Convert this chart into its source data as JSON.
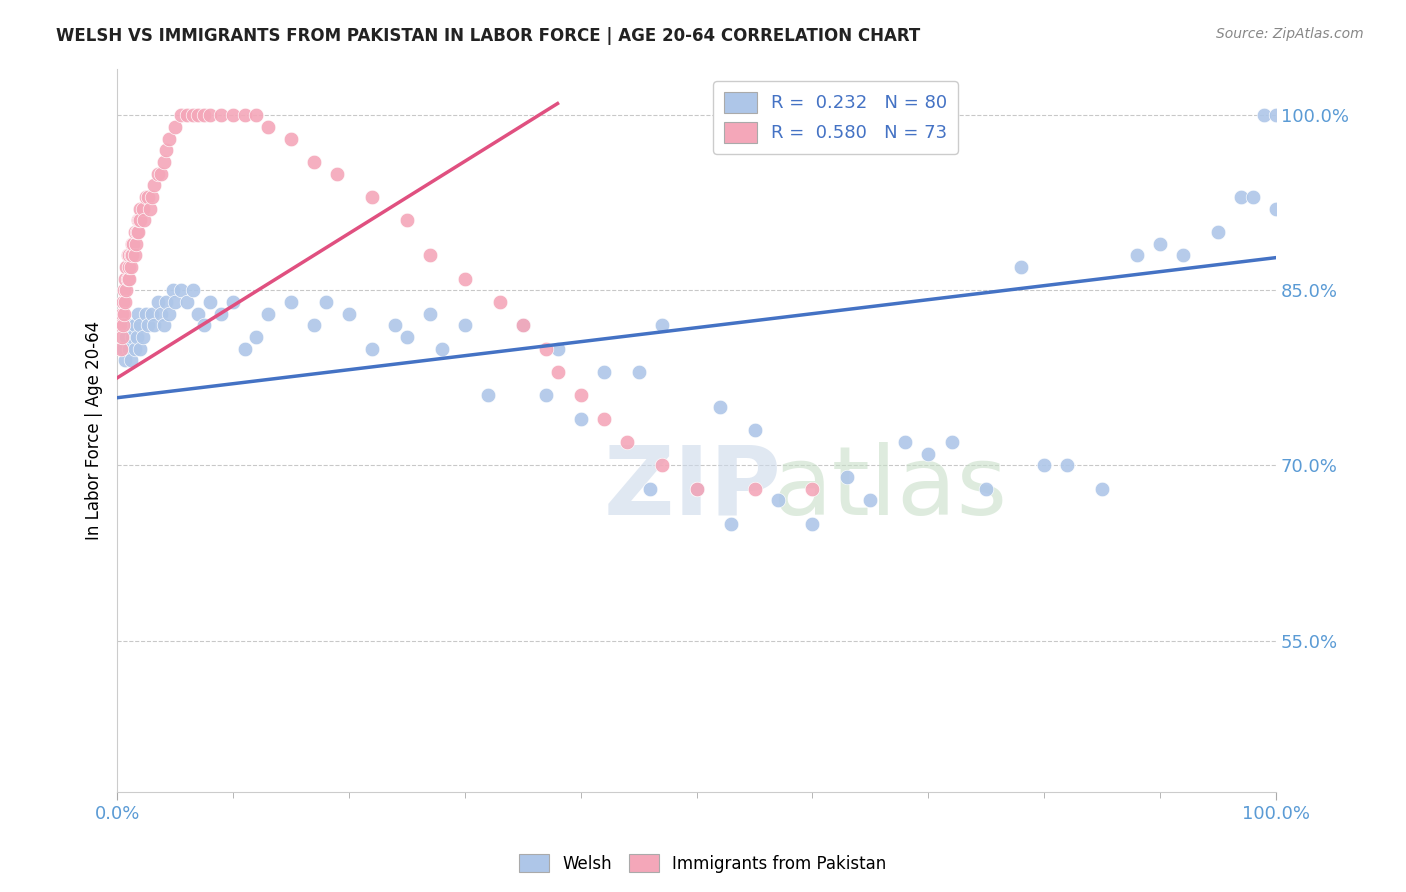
{
  "title": "WELSH VS IMMIGRANTS FROM PAKISTAN IN LABOR FORCE | AGE 20-64 CORRELATION CHART",
  "source": "Source: ZipAtlas.com",
  "ylabel": "In Labor Force | Age 20-64",
  "ytick_vals": [
    0.55,
    0.7,
    0.85,
    1.0
  ],
  "ytick_labels": [
    "55.0%",
    "70.0%",
    "85.0%",
    "100.0%"
  ],
  "xlim": [
    0.0,
    1.0
  ],
  "ylim": [
    0.42,
    1.04
  ],
  "welsh_color": "#aec6e8",
  "pakistan_color": "#f4a7b9",
  "welsh_line_color": "#4472c4",
  "pakistan_line_color": "#e05080",
  "legend_welsh": "R =  0.232   N = 80",
  "legend_pakistan": "R =  0.580   N = 73",
  "welsh_trend_x": [
    0.0,
    1.0
  ],
  "welsh_trend_y": [
    0.758,
    0.878
  ],
  "pakistan_trend_x": [
    0.0,
    0.38
  ],
  "pakistan_trend_y": [
    0.775,
    1.01
  ],
  "welsh_x": [
    0.005,
    0.007,
    0.008,
    0.01,
    0.01,
    0.012,
    0.013,
    0.015,
    0.015,
    0.017,
    0.018,
    0.02,
    0.02,
    0.022,
    0.025,
    0.027,
    0.03,
    0.032,
    0.035,
    0.038,
    0.04,
    0.042,
    0.045,
    0.048,
    0.05,
    0.055,
    0.06,
    0.065,
    0.07,
    0.075,
    0.08,
    0.09,
    0.1,
    0.11,
    0.12,
    0.13,
    0.15,
    0.17,
    0.18,
    0.2,
    0.22,
    0.24,
    0.25,
    0.27,
    0.28,
    0.3,
    0.32,
    0.35,
    0.37,
    0.38,
    0.4,
    0.42,
    0.45,
    0.46,
    0.47,
    0.5,
    0.52,
    0.53,
    0.55,
    0.57,
    0.6,
    0.63,
    0.65,
    0.68,
    0.7,
    0.72,
    0.75,
    0.78,
    0.8,
    0.82,
    0.85,
    0.88,
    0.9,
    0.92,
    0.95,
    0.97,
    0.98,
    0.99,
    1.0,
    1.0
  ],
  "welsh_y": [
    0.8,
    0.79,
    0.81,
    0.8,
    0.82,
    0.79,
    0.81,
    0.82,
    0.8,
    0.81,
    0.83,
    0.82,
    0.8,
    0.81,
    0.83,
    0.82,
    0.83,
    0.82,
    0.84,
    0.83,
    0.82,
    0.84,
    0.83,
    0.85,
    0.84,
    0.85,
    0.84,
    0.85,
    0.83,
    0.82,
    0.84,
    0.83,
    0.84,
    0.8,
    0.81,
    0.83,
    0.84,
    0.82,
    0.84,
    0.83,
    0.8,
    0.82,
    0.81,
    0.83,
    0.8,
    0.82,
    0.76,
    0.82,
    0.76,
    0.8,
    0.74,
    0.78,
    0.78,
    0.68,
    0.82,
    0.68,
    0.75,
    0.65,
    0.73,
    0.67,
    0.65,
    0.69,
    0.67,
    0.72,
    0.71,
    0.72,
    0.68,
    0.87,
    0.7,
    0.7,
    0.68,
    0.88,
    0.89,
    0.88,
    0.9,
    0.93,
    0.93,
    1.0,
    1.0,
    0.92
  ],
  "pakistan_x": [
    0.002,
    0.003,
    0.004,
    0.004,
    0.005,
    0.005,
    0.006,
    0.006,
    0.007,
    0.007,
    0.008,
    0.008,
    0.009,
    0.009,
    0.01,
    0.01,
    0.01,
    0.012,
    0.012,
    0.013,
    0.013,
    0.014,
    0.015,
    0.015,
    0.016,
    0.017,
    0.018,
    0.018,
    0.019,
    0.02,
    0.02,
    0.022,
    0.023,
    0.025,
    0.027,
    0.028,
    0.03,
    0.032,
    0.035,
    0.038,
    0.04,
    0.042,
    0.045,
    0.05,
    0.055,
    0.06,
    0.065,
    0.07,
    0.075,
    0.08,
    0.09,
    0.1,
    0.11,
    0.12,
    0.13,
    0.15,
    0.17,
    0.19,
    0.22,
    0.25,
    0.27,
    0.3,
    0.33,
    0.35,
    0.37,
    0.38,
    0.4,
    0.42,
    0.44,
    0.47,
    0.5,
    0.55,
    0.6
  ],
  "pakistan_y": [
    0.82,
    0.8,
    0.83,
    0.81,
    0.84,
    0.82,
    0.85,
    0.83,
    0.86,
    0.84,
    0.87,
    0.85,
    0.88,
    0.86,
    0.88,
    0.86,
    0.87,
    0.88,
    0.87,
    0.89,
    0.88,
    0.89,
    0.9,
    0.88,
    0.89,
    0.9,
    0.91,
    0.9,
    0.91,
    0.92,
    0.91,
    0.92,
    0.91,
    0.93,
    0.93,
    0.92,
    0.93,
    0.94,
    0.95,
    0.95,
    0.96,
    0.97,
    0.98,
    0.99,
    1.0,
    1.0,
    1.0,
    1.0,
    1.0,
    1.0,
    1.0,
    1.0,
    1.0,
    1.0,
    0.99,
    0.98,
    0.96,
    0.95,
    0.93,
    0.91,
    0.88,
    0.86,
    0.84,
    0.82,
    0.8,
    0.78,
    0.76,
    0.74,
    0.72,
    0.7,
    0.68,
    0.68,
    0.68
  ]
}
